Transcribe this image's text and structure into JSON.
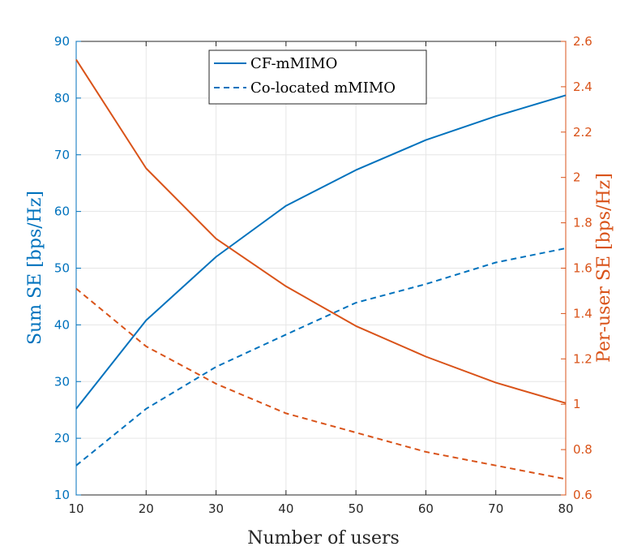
{
  "chart_data": {
    "type": "line",
    "xlabel": "Number of users",
    "ylabel_left": "Sum SE [bps/Hz]",
    "ylabel_right": "Per-user SE [bps/Hz]",
    "x": [
      10,
      20,
      30,
      40,
      50,
      60,
      70,
      80
    ],
    "xlim": [
      10,
      80
    ],
    "xticks": [
      "10",
      "20",
      "30",
      "40",
      "50",
      "60",
      "70",
      "80"
    ],
    "ylim_left": [
      10,
      90
    ],
    "yticks_left": [
      "10",
      "20",
      "30",
      "40",
      "50",
      "60",
      "70",
      "80",
      "90"
    ],
    "ylim_right": [
      0.6,
      2.6
    ],
    "yticks_right": [
      "0.6",
      "0.8",
      "1",
      "1.2",
      "1.4",
      "1.6",
      "1.8",
      "2",
      "2.2",
      "2.4",
      "2.6"
    ],
    "grid": true,
    "legend_position": "top-center",
    "legend": [
      "CF-mMIMO",
      "Co-located mMIMO"
    ],
    "colors": {
      "left_axis": "#0072BD",
      "right_axis": "#D95319"
    },
    "series": [
      {
        "name": "CF-mMIMO sum SE",
        "axis": "left",
        "style": "solid",
        "values": [
          25.2,
          40.8,
          52.0,
          61.0,
          67.3,
          72.6,
          76.8,
          80.5
        ]
      },
      {
        "name": "Co-located mMIMO sum SE",
        "axis": "left",
        "style": "dashed",
        "values": [
          15.2,
          25.2,
          32.6,
          38.3,
          43.9,
          47.2,
          51.0,
          53.5
        ]
      },
      {
        "name": "CF-mMIMO per-user SE",
        "axis": "right",
        "style": "solid",
        "values": [
          2.52,
          2.04,
          1.73,
          1.52,
          1.345,
          1.21,
          1.095,
          1.005
        ]
      },
      {
        "name": "Co-located mMIMO per-user SE",
        "axis": "right",
        "style": "dashed",
        "values": [
          1.51,
          1.255,
          1.09,
          0.96,
          0.875,
          0.79,
          0.73,
          0.67
        ]
      }
    ]
  }
}
